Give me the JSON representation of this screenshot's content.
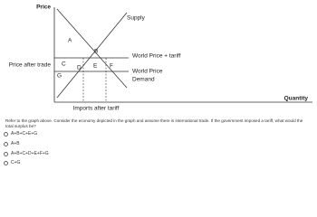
{
  "graph": {
    "y_axis_label": "Price",
    "x_axis_label": "Quantity",
    "price_label": "Price after trade",
    "supply_label": "Supply",
    "demand_label": "Demand",
    "tariff_label": "World Price + tariff",
    "world_price_label": "World Price",
    "imports_label": "Imports after tariff",
    "areas": [
      "A",
      "B",
      "C",
      "D",
      "E",
      "F",
      "G"
    ]
  },
  "question": "Refer to the graph above. Consider the economy depicted in the graph and assume there is international trade. If the government imposed a tariff, what would the total surplus be?",
  "options": [
    "A+B+C+E+G",
    "A+B",
    "A+B+C+D+E+F+G",
    "C+G"
  ]
}
